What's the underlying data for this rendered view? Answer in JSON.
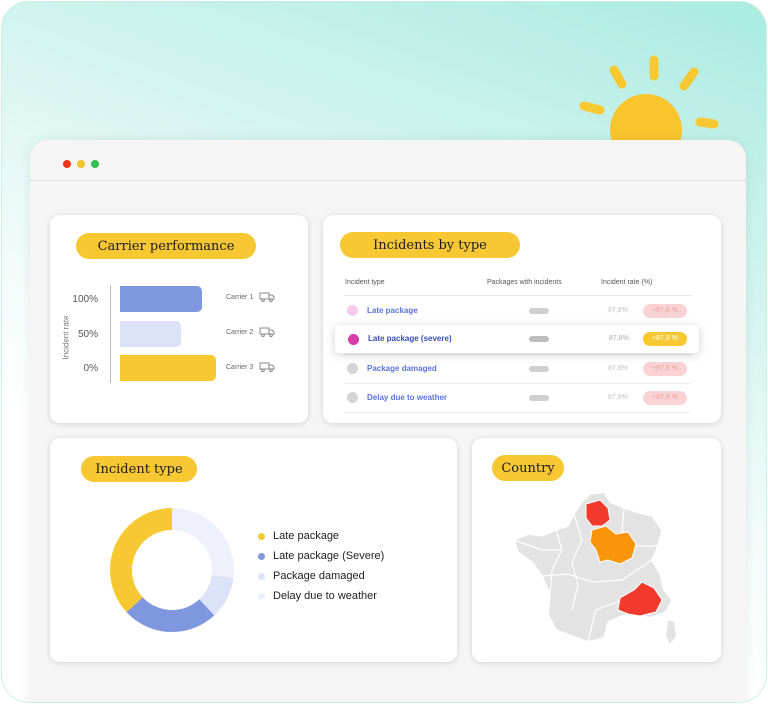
{
  "colors": {
    "yellow": "#f7c832",
    "blue": "#7e97de",
    "lightblue": "#dce3f8",
    "verylight": "#eef1fc",
    "red": "#f13a2c",
    "orange": "#f9950b",
    "mapgray": "#e3e3e3"
  },
  "carrier_card": {
    "title": "Carrier performance",
    "y_axis_label": "Incident rate",
    "ticks": [
      "100%",
      "50%",
      "0%"
    ],
    "carriers": [
      {
        "label": "Carrier 1",
        "icon": "truck-icon"
      },
      {
        "label": "Carrier  2",
        "icon": "truck-icon"
      },
      {
        "label": "Carrier 3",
        "icon": "truck-icon"
      }
    ]
  },
  "incidents_card": {
    "title": "Incidents by type",
    "headers": [
      "Incident type",
      "Packages with incidents",
      "Incident rate (%)"
    ],
    "rows": [
      {
        "name": "Late package",
        "value": "87,8%",
        "badge": "+87,8 %"
      },
      {
        "name": "Late package (severe)",
        "value": "87,8%",
        "badge": "+87,8 %"
      },
      {
        "name": "Package damaged",
        "value": "87,8%",
        "badge": "+87,8 %"
      },
      {
        "name": "Delay due to weather",
        "value": "87,8%",
        "badge": "+87,8 %"
      }
    ]
  },
  "incident_type_card": {
    "title": "Incident type",
    "legend": [
      {
        "label": "Late package",
        "color": "#f7c832"
      },
      {
        "label": "Late package (Severe)",
        "color": "#7e97de"
      },
      {
        "label": "Package damaged",
        "color": "#dce3f8"
      },
      {
        "label": "Delay due to weather",
        "color": "#eef1fc"
      }
    ]
  },
  "country_card": {
    "title": "Country"
  },
  "chart_data": {
    "type": "pie",
    "categories": [
      "Late package",
      "Late package (Severe)",
      "Package damaged",
      "Delay due to weather"
    ],
    "values": [
      37,
      25,
      11,
      27
    ]
  }
}
